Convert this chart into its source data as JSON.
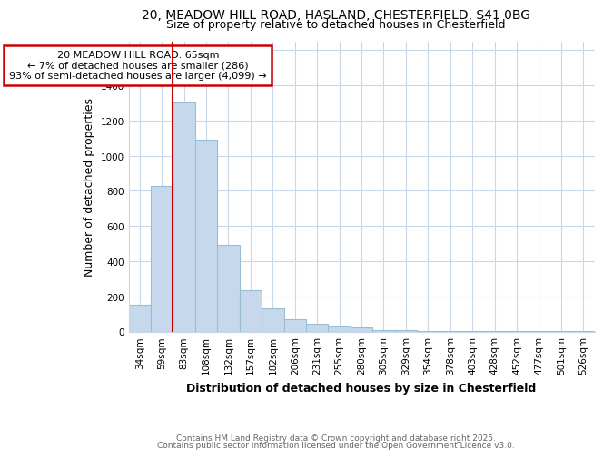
{
  "title1": "20, MEADOW HILL ROAD, HASLAND, CHESTERFIELD, S41 0BG",
  "title2": "Size of property relative to detached houses in Chesterfield",
  "xlabel": "Distribution of detached houses by size in Chesterfield",
  "ylabel": "Number of detached properties",
  "categories": [
    "34sqm",
    "59sqm",
    "83sqm",
    "108sqm",
    "132sqm",
    "157sqm",
    "182sqm",
    "206sqm",
    "231sqm",
    "255sqm",
    "280sqm",
    "305sqm",
    "329sqm",
    "354sqm",
    "378sqm",
    "403sqm",
    "428sqm",
    "452sqm",
    "477sqm",
    "501sqm",
    "526sqm"
  ],
  "values": [
    150,
    830,
    1300,
    1090,
    490,
    235,
    130,
    70,
    45,
    30,
    25,
    10,
    10,
    3,
    3,
    3,
    3,
    1,
    1,
    1,
    1
  ],
  "bar_color": "#c6d9ec",
  "bar_edge_color": "#9bbdd4",
  "ylim": [
    0,
    1650
  ],
  "yticks": [
    0,
    200,
    400,
    600,
    800,
    1000,
    1200,
    1400,
    1600
  ],
  "vline_x": 1.5,
  "vline_color": "#cc0000",
  "annotation_line1": "20 MEADOW HILL ROAD: 65sqm",
  "annotation_line2": "← 7% of detached houses are smaller (286)",
  "annotation_line3": "93% of semi-detached houses are larger (4,099) →",
  "footer1": "Contains HM Land Registry data © Crown copyright and database right 2025.",
  "footer2": "Contains public sector information licensed under the Open Government Licence v3.0.",
  "bg_color": "#ffffff",
  "grid_color": "#c8d8e8",
  "title_fontsize": 10,
  "subtitle_fontsize": 9,
  "axis_label_fontsize": 9,
  "tick_fontsize": 7.5,
  "footer_fontsize": 6.5,
  "annot_fontsize": 8
}
